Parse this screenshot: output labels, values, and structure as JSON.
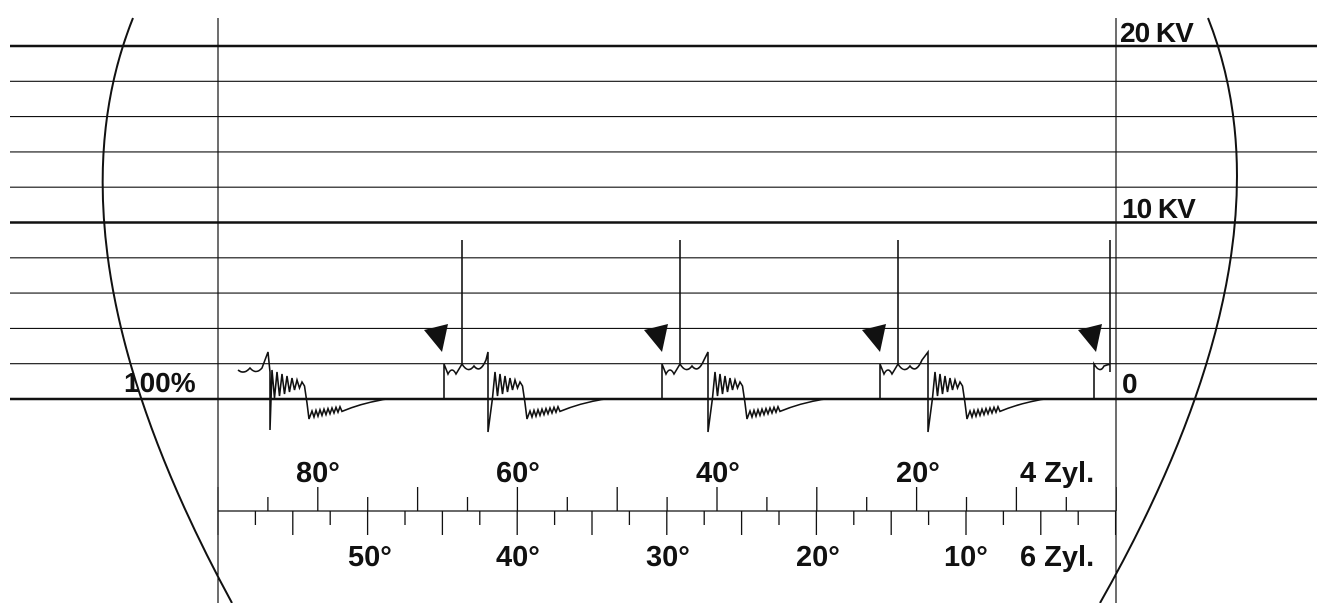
{
  "scale": {
    "right_labels": [
      "20 KV",
      "10 KV",
      "0"
    ],
    "left_label": "100%"
  },
  "dwell_scale_4cyl": {
    "label": "4 Zyl.",
    "degrees": [
      "80°",
      "60°",
      "40°",
      "20°"
    ]
  },
  "dwell_scale_6cyl": {
    "label": "6 Zyl.",
    "degrees": [
      "50°",
      "40°",
      "30°",
      "20°",
      "10°"
    ]
  },
  "colors": {
    "ink": "#111111",
    "background": "#ffffff"
  }
}
